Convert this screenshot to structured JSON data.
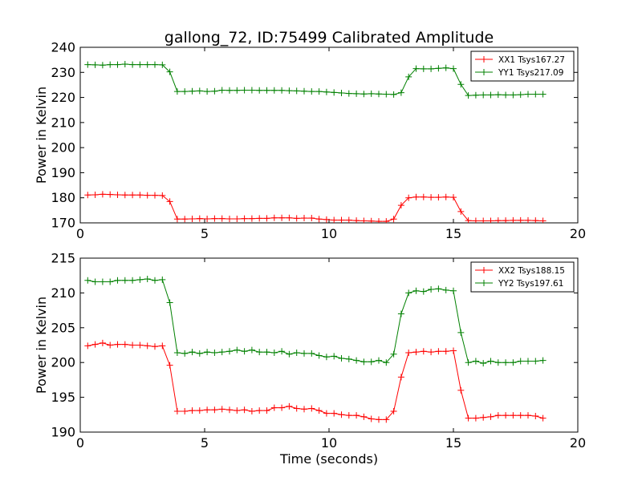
{
  "chart_data": [
    {
      "type": "line",
      "title": "gallong_72, ID:75499 Calibrated Amplitude",
      "xlabel": "",
      "ylabel": "Power in Kelvin",
      "xlim": [
        0,
        20
      ],
      "ylim": [
        170,
        240
      ],
      "xticks": [
        0,
        5,
        10,
        15,
        20
      ],
      "xtick_labels": [
        "0",
        "5",
        "10",
        "15",
        "20"
      ],
      "yticks": [
        170,
        180,
        190,
        200,
        210,
        220,
        230,
        240
      ],
      "ytick_labels": [
        "170",
        "180",
        "190",
        "200",
        "210",
        "220",
        "230",
        "240"
      ],
      "legend_position": "top-right",
      "grid": false,
      "series": [
        {
          "name": "XX1 Tsys167.27",
          "color": "#ff0000",
          "x": [
            0.3,
            0.6,
            0.9,
            1.2,
            1.5,
            1.8,
            2.1,
            2.4,
            2.7,
            3.0,
            3.3,
            3.6,
            3.9,
            4.2,
            4.5,
            4.8,
            5.1,
            5.4,
            5.7,
            6.0,
            6.3,
            6.6,
            6.9,
            7.2,
            7.5,
            7.8,
            8.1,
            8.4,
            8.7,
            9.0,
            9.3,
            9.6,
            9.9,
            10.2,
            10.5,
            10.8,
            11.1,
            11.4,
            11.7,
            12.0,
            12.3,
            12.6,
            12.9,
            13.2,
            13.5,
            13.8,
            14.1,
            14.4,
            14.7,
            15.0,
            15.3,
            15.6,
            15.9,
            16.2,
            16.5,
            16.8,
            17.1,
            17.4,
            17.7,
            18.0,
            18.3,
            18.6
          ],
          "y": [
            181.1,
            181.2,
            181.4,
            181.3,
            181.2,
            181.1,
            181.1,
            181.1,
            181.0,
            181.0,
            180.9,
            178.5,
            171.5,
            171.5,
            171.6,
            171.7,
            171.6,
            171.7,
            171.7,
            171.6,
            171.6,
            171.7,
            171.7,
            171.8,
            171.8,
            172.0,
            172.0,
            172.0,
            171.8,
            171.9,
            171.9,
            171.5,
            171.3,
            171.1,
            171.1,
            171.1,
            170.9,
            170.8,
            170.7,
            170.6,
            170.6,
            171.5,
            177.0,
            180.0,
            180.3,
            180.3,
            180.2,
            180.2,
            180.3,
            180.2,
            174.5,
            170.9,
            170.8,
            170.8,
            170.8,
            170.9,
            170.9,
            171.0,
            171.0,
            171.0,
            170.9,
            170.8
          ]
        },
        {
          "name": "YY1 Tsys217.09",
          "color": "#008000",
          "x": [
            0.3,
            0.6,
            0.9,
            1.2,
            1.5,
            1.8,
            2.1,
            2.4,
            2.7,
            3.0,
            3.3,
            3.6,
            3.9,
            4.2,
            4.5,
            4.8,
            5.1,
            5.4,
            5.7,
            6.0,
            6.3,
            6.6,
            6.9,
            7.2,
            7.5,
            7.8,
            8.1,
            8.4,
            8.7,
            9.0,
            9.3,
            9.6,
            9.9,
            10.2,
            10.5,
            10.8,
            11.1,
            11.4,
            11.7,
            12.0,
            12.3,
            12.6,
            12.9,
            13.2,
            13.5,
            13.8,
            14.1,
            14.4,
            14.7,
            15.0,
            15.3,
            15.6,
            15.9,
            16.2,
            16.5,
            16.8,
            17.1,
            17.4,
            17.7,
            18.0,
            18.3,
            18.6
          ],
          "y": [
            233.1,
            233.0,
            232.9,
            233.1,
            233.1,
            233.3,
            233.1,
            233.1,
            233.1,
            233.1,
            233.0,
            230.2,
            222.4,
            222.4,
            222.5,
            222.6,
            222.4,
            222.5,
            222.9,
            222.8,
            222.8,
            222.9,
            222.9,
            222.8,
            222.8,
            222.8,
            222.8,
            222.7,
            222.6,
            222.5,
            222.4,
            222.4,
            222.2,
            222.0,
            221.8,
            221.6,
            221.5,
            221.4,
            221.5,
            221.4,
            221.3,
            221.2,
            221.9,
            228.2,
            231.5,
            231.4,
            231.4,
            231.6,
            231.8,
            231.5,
            225.2,
            220.8,
            220.9,
            221.0,
            221.0,
            221.1,
            221.0,
            221.0,
            221.1,
            221.3,
            221.3,
            221.3
          ]
        }
      ]
    },
    {
      "type": "line",
      "title": "",
      "xlabel": "Time (seconds)",
      "ylabel": "Power in Kelvin",
      "xlim": [
        0,
        20
      ],
      "ylim": [
        190,
        215
      ],
      "xticks": [
        0,
        5,
        10,
        15,
        20
      ],
      "xtick_labels": [
        "0",
        "5",
        "10",
        "15",
        "20"
      ],
      "yticks": [
        190,
        195,
        200,
        205,
        210,
        215
      ],
      "ytick_labels": [
        "190",
        "195",
        "200",
        "205",
        "210",
        "215"
      ],
      "legend_position": "top-right",
      "grid": false,
      "series": [
        {
          "name": "XX2 Tsys188.15",
          "color": "#ff0000",
          "x": [
            0.3,
            0.6,
            0.9,
            1.2,
            1.5,
            1.8,
            2.1,
            2.4,
            2.7,
            3.0,
            3.3,
            3.6,
            3.9,
            4.2,
            4.5,
            4.8,
            5.1,
            5.4,
            5.7,
            6.0,
            6.3,
            6.6,
            6.9,
            7.2,
            7.5,
            7.8,
            8.1,
            8.4,
            8.7,
            9.0,
            9.3,
            9.6,
            9.9,
            10.2,
            10.5,
            10.8,
            11.1,
            11.4,
            11.7,
            12.0,
            12.3,
            12.6,
            12.9,
            13.2,
            13.5,
            13.8,
            14.1,
            14.4,
            14.7,
            15.0,
            15.3,
            15.6,
            15.9,
            16.2,
            16.5,
            16.8,
            17.1,
            17.4,
            17.7,
            18.0,
            18.3,
            18.6
          ],
          "y": [
            202.4,
            202.6,
            202.8,
            202.5,
            202.6,
            202.6,
            202.5,
            202.5,
            202.4,
            202.3,
            202.4,
            199.6,
            193.0,
            193.0,
            193.1,
            193.1,
            193.2,
            193.2,
            193.3,
            193.2,
            193.1,
            193.2,
            193.0,
            193.1,
            193.1,
            193.5,
            193.5,
            193.7,
            193.4,
            193.3,
            193.4,
            193.1,
            192.7,
            192.7,
            192.5,
            192.4,
            192.4,
            192.2,
            191.9,
            191.8,
            191.8,
            193.0,
            197.9,
            201.4,
            201.5,
            201.6,
            201.5,
            201.6,
            201.6,
            201.7,
            196.0,
            192.0,
            192.0,
            192.1,
            192.2,
            192.4,
            192.4,
            192.4,
            192.4,
            192.4,
            192.3,
            192.0
          ]
        },
        {
          "name": "YY2 Tsys197.61",
          "color": "#008000",
          "x": [
            0.3,
            0.6,
            0.9,
            1.2,
            1.5,
            1.8,
            2.1,
            2.4,
            2.7,
            3.0,
            3.3,
            3.6,
            3.9,
            4.2,
            4.5,
            4.8,
            5.1,
            5.4,
            5.7,
            6.0,
            6.3,
            6.6,
            6.9,
            7.2,
            7.5,
            7.8,
            8.1,
            8.4,
            8.7,
            9.0,
            9.3,
            9.6,
            9.9,
            10.2,
            10.5,
            10.8,
            11.1,
            11.4,
            11.7,
            12.0,
            12.3,
            12.6,
            12.9,
            13.2,
            13.5,
            13.8,
            14.1,
            14.4,
            14.7,
            15.0,
            15.3,
            15.6,
            15.9,
            16.2,
            16.5,
            16.8,
            17.1,
            17.4,
            17.7,
            18.0,
            18.3,
            18.6
          ],
          "y": [
            211.8,
            211.6,
            211.6,
            211.6,
            211.8,
            211.8,
            211.8,
            211.9,
            212.0,
            211.8,
            211.9,
            208.6,
            201.4,
            201.3,
            201.5,
            201.3,
            201.5,
            201.4,
            201.5,
            201.6,
            201.8,
            201.6,
            201.8,
            201.5,
            201.5,
            201.4,
            201.6,
            201.2,
            201.4,
            201.3,
            201.3,
            201.0,
            200.8,
            200.9,
            200.6,
            200.5,
            200.3,
            200.1,
            200.1,
            200.3,
            200.0,
            201.2,
            207.0,
            210.0,
            210.3,
            210.2,
            210.5,
            210.6,
            210.4,
            210.3,
            204.3,
            200.0,
            200.2,
            199.9,
            200.2,
            200.0,
            200.0,
            200.0,
            200.2,
            200.2,
            200.2,
            200.3
          ]
        }
      ]
    }
  ]
}
